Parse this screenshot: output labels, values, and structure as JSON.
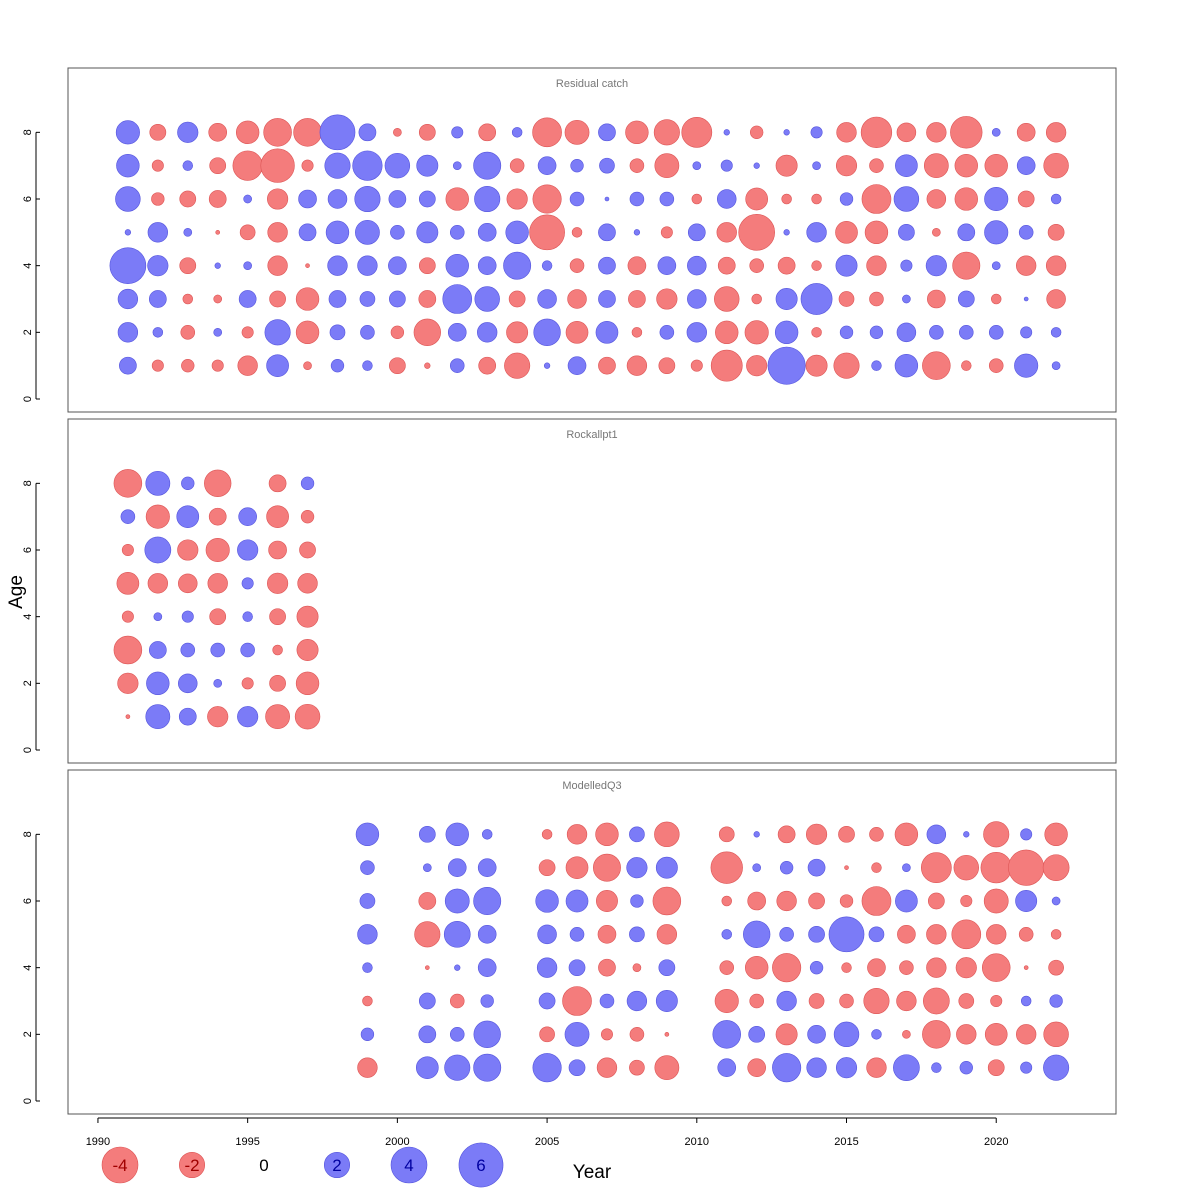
{
  "chart_data": {
    "type": "scatter",
    "subtype": "bubble",
    "xlabel": "Year",
    "ylabel": "Age",
    "xlim": [
      1989,
      2024
    ],
    "ylim": [
      0,
      9
    ],
    "x_ticks": [
      1990,
      1995,
      2000,
      2005,
      2010,
      2015,
      2020
    ],
    "y_ticks": [
      0,
      2,
      4,
      6,
      8
    ],
    "colors": {
      "positive": "#7b7bf7",
      "negative": "#f47c7c",
      "positive_text": "#0000a0",
      "negative_text": "#a00000"
    },
    "legend": {
      "position": "bottom",
      "values": [
        -4,
        -2,
        0,
        2,
        4,
        6
      ],
      "labels": [
        "-4",
        "-2",
        "0",
        "2",
        "4",
        "6"
      ]
    },
    "ages": [
      8,
      7,
      6,
      5,
      4,
      3,
      2,
      1
    ],
    "panels": [
      {
        "title": "Residual catch",
        "years": [
          1991,
          1992,
          1993,
          1994,
          1995,
          1996,
          1997,
          1998,
          1999,
          2000,
          2001,
          2002,
          2003,
          2004,
          2005,
          2006,
          2007,
          2008,
          2009,
          2010,
          2011,
          2012,
          2013,
          2014,
          2015,
          2016,
          2017,
          2018,
          2019,
          2020,
          2021,
          2022
        ],
        "residuals": [
          [
            1.7,
            -0.8,
            1.3,
            -1.0,
            -1.6,
            -2.4,
            -2.4,
            3.8,
            0.9,
            -0.2,
            -0.8,
            0.4,
            -0.9,
            0.3,
            -2.6,
            -1.8,
            0.9,
            -1.6,
            -2.0,
            -2.8,
            0.1,
            -0.5,
            0.1,
            0.4,
            -1.2,
            -2.9,
            -1.1,
            -1.2,
            -3.1,
            0.2,
            -1.0,
            -1.2
          ],
          [
            1.6,
            -0.4,
            0.3,
            -0.8,
            -2.7,
            -3.5,
            -0.4,
            2.0,
            2.7,
            1.9,
            1.4,
            0.2,
            2.3,
            -0.6,
            1.0,
            0.5,
            0.7,
            -0.6,
            -1.8,
            0.2,
            0.4,
            0.1,
            -1.4,
            0.2,
            -1.3,
            -0.6,
            1.5,
            -1.8,
            -1.6,
            -1.6,
            1.0,
            -1.9
          ],
          [
            1.9,
            -0.5,
            -0.8,
            -0.9,
            0.2,
            -1.3,
            1.0,
            1.1,
            2.0,
            0.9,
            0.8,
            -1.6,
            2.0,
            -1.3,
            -2.5,
            0.6,
            0.05,
            0.6,
            0.6,
            -0.3,
            1.1,
            -1.5,
            -0.3,
            -0.3,
            0.5,
            -2.6,
            1.9,
            -1.1,
            -1.6,
            1.7,
            -0.8,
            0.3
          ],
          [
            0.1,
            1.2,
            0.2,
            -0.05,
            -0.7,
            -1.2,
            0.9,
            1.6,
            1.8,
            0.6,
            1.4,
            0.6,
            1.0,
            1.6,
            -3.8,
            -0.3,
            0.9,
            0.1,
            -0.4,
            0.9,
            -1.2,
            -4.0,
            0.1,
            1.2,
            -1.5,
            -1.6,
            0.8,
            -0.2,
            0.9,
            1.7,
            0.6,
            -0.8
          ],
          [
            4.0,
            1.3,
            -0.8,
            0.1,
            0.2,
            -1.2,
            -0.05,
            1.2,
            1.2,
            1.0,
            -0.8,
            1.6,
            1.0,
            2.3,
            0.3,
            -0.6,
            0.9,
            -1.0,
            1.0,
            1.1,
            -0.9,
            -0.6,
            -0.9,
            -0.3,
            1.4,
            -1.2,
            0.4,
            1.3,
            -2.3,
            0.2,
            -1.2,
            -1.2
          ],
          [
            1.2,
            0.9,
            -0.3,
            -0.2,
            0.9,
            -0.8,
            -1.6,
            0.9,
            0.7,
            0.8,
            -0.9,
            2.6,
            1.9,
            -0.8,
            1.1,
            -1.1,
            0.9,
            -0.9,
            -1.3,
            1.1,
            -1.9,
            -0.3,
            1.4,
            3.0,
            -0.7,
            -0.6,
            0.2,
            -1.0,
            0.8,
            -0.3,
            0.05,
            -1.1
          ],
          [
            1.2,
            0.3,
            -0.6,
            0.2,
            -0.4,
            2.0,
            -1.6,
            0.7,
            0.6,
            -0.5,
            -2.2,
            1.0,
            1.2,
            -1.4,
            2.2,
            -1.5,
            1.5,
            -0.3,
            0.6,
            1.2,
            -1.6,
            -1.7,
            1.6,
            -0.3,
            0.5,
            0.5,
            1.1,
            0.6,
            0.6,
            0.6,
            0.4,
            0.3
          ],
          [
            0.9,
            -0.4,
            -0.5,
            -0.4,
            -1.2,
            1.5,
            -0.2,
            0.5,
            0.3,
            -0.8,
            -0.1,
            0.6,
            -0.9,
            -2.0,
            0.1,
            1.0,
            -0.9,
            -1.2,
            -0.8,
            -0.4,
            -3.0,
            -1.3,
            4.3,
            -1.4,
            -2.0,
            0.3,
            1.6,
            -2.4,
            -0.3,
            -0.6,
            1.7,
            0.2
          ]
        ]
      },
      {
        "title": "Rockallpt1",
        "years": [
          1991,
          1992,
          1993,
          1994,
          1995,
          1996,
          1997
        ],
        "residuals": [
          [
            -2.4,
            1.8,
            0.5,
            -2.2,
            null,
            -0.9,
            0.5
          ],
          [
            0.6,
            -1.7,
            1.5,
            -0.9,
            1.0,
            -1.5,
            -0.5
          ],
          [
            -0.4,
            2.1,
            -1.3,
            -1.7,
            1.3,
            -1.0,
            -0.8
          ],
          [
            -1.5,
            -1.2,
            -1.1,
            -1.2,
            0.4,
            -1.3,
            -1.2
          ],
          [
            -0.4,
            0.2,
            0.4,
            -0.8,
            0.3,
            -0.8,
            -1.4
          ],
          [
            -2.4,
            0.9,
            0.6,
            0.6,
            0.6,
            -0.3,
            -1.4
          ],
          [
            -1.3,
            1.6,
            1.1,
            0.2,
            -0.4,
            -0.8,
            -1.6
          ],
          [
            -0.05,
            1.8,
            0.9,
            -1.3,
            1.3,
            -1.8,
            -1.9
          ]
        ]
      },
      {
        "title": "ModelledQ3",
        "years": [
          1999,
          2000,
          2001,
          2002,
          2003,
          2004,
          2005,
          2006,
          2007,
          2008,
          2009,
          2010,
          2011,
          2012,
          2013,
          2014,
          2015,
          2016,
          2017,
          2018,
          2019,
          2020,
          2021,
          2022
        ],
        "residuals": [
          [
            1.6,
            null,
            0.8,
            1.6,
            0.3,
            null,
            -0.3,
            -1.2,
            -1.6,
            0.7,
            -1.9,
            null,
            -0.7,
            0.1,
            -0.9,
            -1.3,
            -0.8,
            -0.6,
            -1.6,
            1.1,
            0.1,
            -2.0,
            0.4,
            -1.6
          ],
          [
            0.6,
            null,
            0.2,
            1.0,
            1.0,
            null,
            -0.8,
            -1.5,
            -2.3,
            1.3,
            1.4,
            null,
            -3.1,
            0.2,
            0.5,
            0.9,
            -0.05,
            -0.3,
            0.2,
            -2.8,
            -1.9,
            -2.9,
            -3.9,
            -2.1
          ],
          [
            0.7,
            null,
            -0.9,
            1.8,
            2.3,
            null,
            1.6,
            1.5,
            -1.4,
            0.5,
            -2.4,
            null,
            -0.3,
            -1.0,
            -1.2,
            -0.8,
            -0.5,
            -2.6,
            1.5,
            -0.8,
            -0.4,
            -1.8,
            1.4,
            0.2
          ],
          [
            1.2,
            null,
            -2.0,
            2.1,
            1.0,
            null,
            1.1,
            0.6,
            -1.0,
            0.7,
            -1.2,
            null,
            0.3,
            2.2,
            0.6,
            0.8,
            3.8,
            0.7,
            -1.0,
            -1.2,
            -2.6,
            -1.2,
            -0.6,
            -0.3
          ],
          [
            0.3,
            null,
            -0.05,
            0.1,
            1.0,
            null,
            1.2,
            0.8,
            -0.9,
            -0.2,
            0.8,
            null,
            -0.6,
            -1.6,
            -2.5,
            0.5,
            -0.3,
            -1.0,
            -0.6,
            -1.2,
            -1.3,
            -2.4,
            -0.05,
            -0.7
          ],
          [
            -0.3,
            null,
            0.8,
            -0.6,
            0.5,
            null,
            0.8,
            -2.6,
            0.6,
            1.2,
            1.4,
            null,
            -1.7,
            -0.6,
            1.2,
            -0.7,
            -0.6,
            -2.0,
            -1.2,
            -2.1,
            -0.7,
            -0.4,
            0.3,
            0.5
          ],
          [
            0.5,
            null,
            0.9,
            0.6,
            2.2,
            null,
            -0.7,
            1.8,
            -0.4,
            -0.6,
            -0.05,
            null,
            2.4,
            0.8,
            -1.4,
            1.0,
            1.9,
            0.3,
            -0.2,
            -2.4,
            -1.2,
            -1.5,
            -1.2,
            -1.9
          ],
          [
            -1.2,
            null,
            1.5,
            2.0,
            2.3,
            null,
            2.5,
            0.8,
            -1.2,
            -0.7,
            -1.8,
            null,
            1.0,
            -1.0,
            2.5,
            1.2,
            1.3,
            -1.2,
            2.1,
            0.3,
            0.5,
            -0.8,
            0.4,
            2.0
          ]
        ]
      }
    ]
  }
}
